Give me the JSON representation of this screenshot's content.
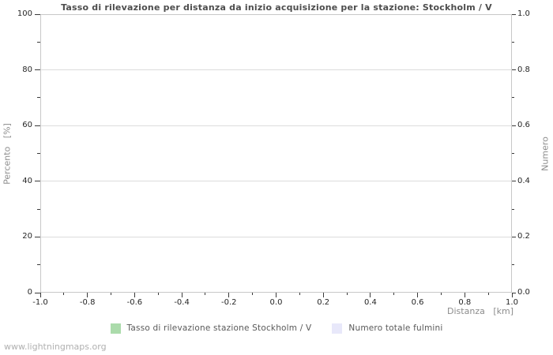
{
  "chart_data": {
    "type": "line",
    "title": "Tasso di rilevazione per distanza da inizio acquisizione per la stazione: Stockholm / V",
    "xlabel": "Distanza   [km]",
    "ylabel_left": "Percento   [%]",
    "ylabel_right": "Numero",
    "xlim": [
      -1.0,
      1.0
    ],
    "ylim_left": [
      0,
      100
    ],
    "ylim_right": [
      0.0,
      1.0
    ],
    "x_ticks": [
      "-1.0",
      "-0.8",
      "-0.6",
      "-0.4",
      "-0.2",
      "0.0",
      "0.2",
      "0.4",
      "0.6",
      "0.8",
      "1.0"
    ],
    "y_ticks_left": [
      "0",
      "20",
      "40",
      "60",
      "80",
      "100"
    ],
    "y_ticks_right": [
      "0.0",
      "0.2",
      "0.4",
      "0.6",
      "0.8",
      "1.0"
    ],
    "x_minor_per_major": 2,
    "y_minor_per_major": 2,
    "grid": "horizontal-major-only",
    "legend_position": "bottom-center",
    "plot_background": "#ffffff",
    "gridline_color": "#dcdcdc",
    "border_color": "#c8c8c8",
    "series": [
      {
        "name": "Tasso di rilevazione stazione Stockholm / V",
        "color": "#abdbab",
        "yaxis": "left",
        "x": [],
        "values": []
      },
      {
        "name": "Numero totale fulmini",
        "color": "#e8e8fa",
        "yaxis": "right",
        "x": [],
        "values": []
      }
    ]
  },
  "watermark": "www.lightningmaps.org"
}
